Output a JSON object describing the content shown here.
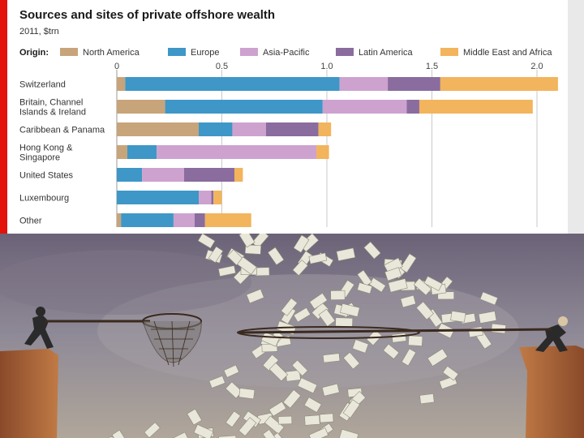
{
  "chart_data": {
    "type": "bar",
    "orientation": "horizontal",
    "stacked": true,
    "title": "Sources and sites of private offshore wealth",
    "subtitle": "2011, $trn",
    "legend_label": "Origin:",
    "legend_position": "top",
    "xlim": [
      0,
      2.1
    ],
    "xticks": [
      {
        "value": 0,
        "label": "0"
      },
      {
        "value": 0.5,
        "label": "0.5"
      },
      {
        "value": 1.0,
        "label": "1.0"
      },
      {
        "value": 1.5,
        "label": "1.5"
      },
      {
        "value": 2.0,
        "label": "2.0"
      }
    ],
    "grid": true,
    "categories": [
      [
        "Switzerland"
      ],
      [
        "Britain, Channel",
        "Islands & Ireland"
      ],
      [
        "Caribbean & Panama"
      ],
      [
        "Hong Kong &",
        "Singapore"
      ],
      [
        "United States"
      ],
      [
        "Luxembourg"
      ],
      [
        "Other"
      ]
    ],
    "series": [
      {
        "name": "North America",
        "color": "#c8a47a",
        "values": [
          0.04,
          0.23,
          0.39,
          0.05,
          0.0,
          0.0,
          0.02
        ]
      },
      {
        "name": "Europe",
        "color": "#3e97c7",
        "values": [
          1.02,
          0.75,
          0.16,
          0.14,
          0.12,
          0.39,
          0.25
        ]
      },
      {
        "name": "Asia-Pacific",
        "color": "#cda2cf",
        "values": [
          0.23,
          0.4,
          0.16,
          0.76,
          0.2,
          0.06,
          0.1
        ]
      },
      {
        "name": "Latin America",
        "color": "#8a6c9f",
        "values": [
          0.25,
          0.06,
          0.25,
          0.0,
          0.24,
          0.01,
          0.05
        ]
      },
      {
        "name": "Middle East and Africa",
        "color": "#f2b45c",
        "values": [
          0.56,
          0.54,
          0.06,
          0.06,
          0.04,
          0.04,
          0.22
        ]
      }
    ]
  }
}
